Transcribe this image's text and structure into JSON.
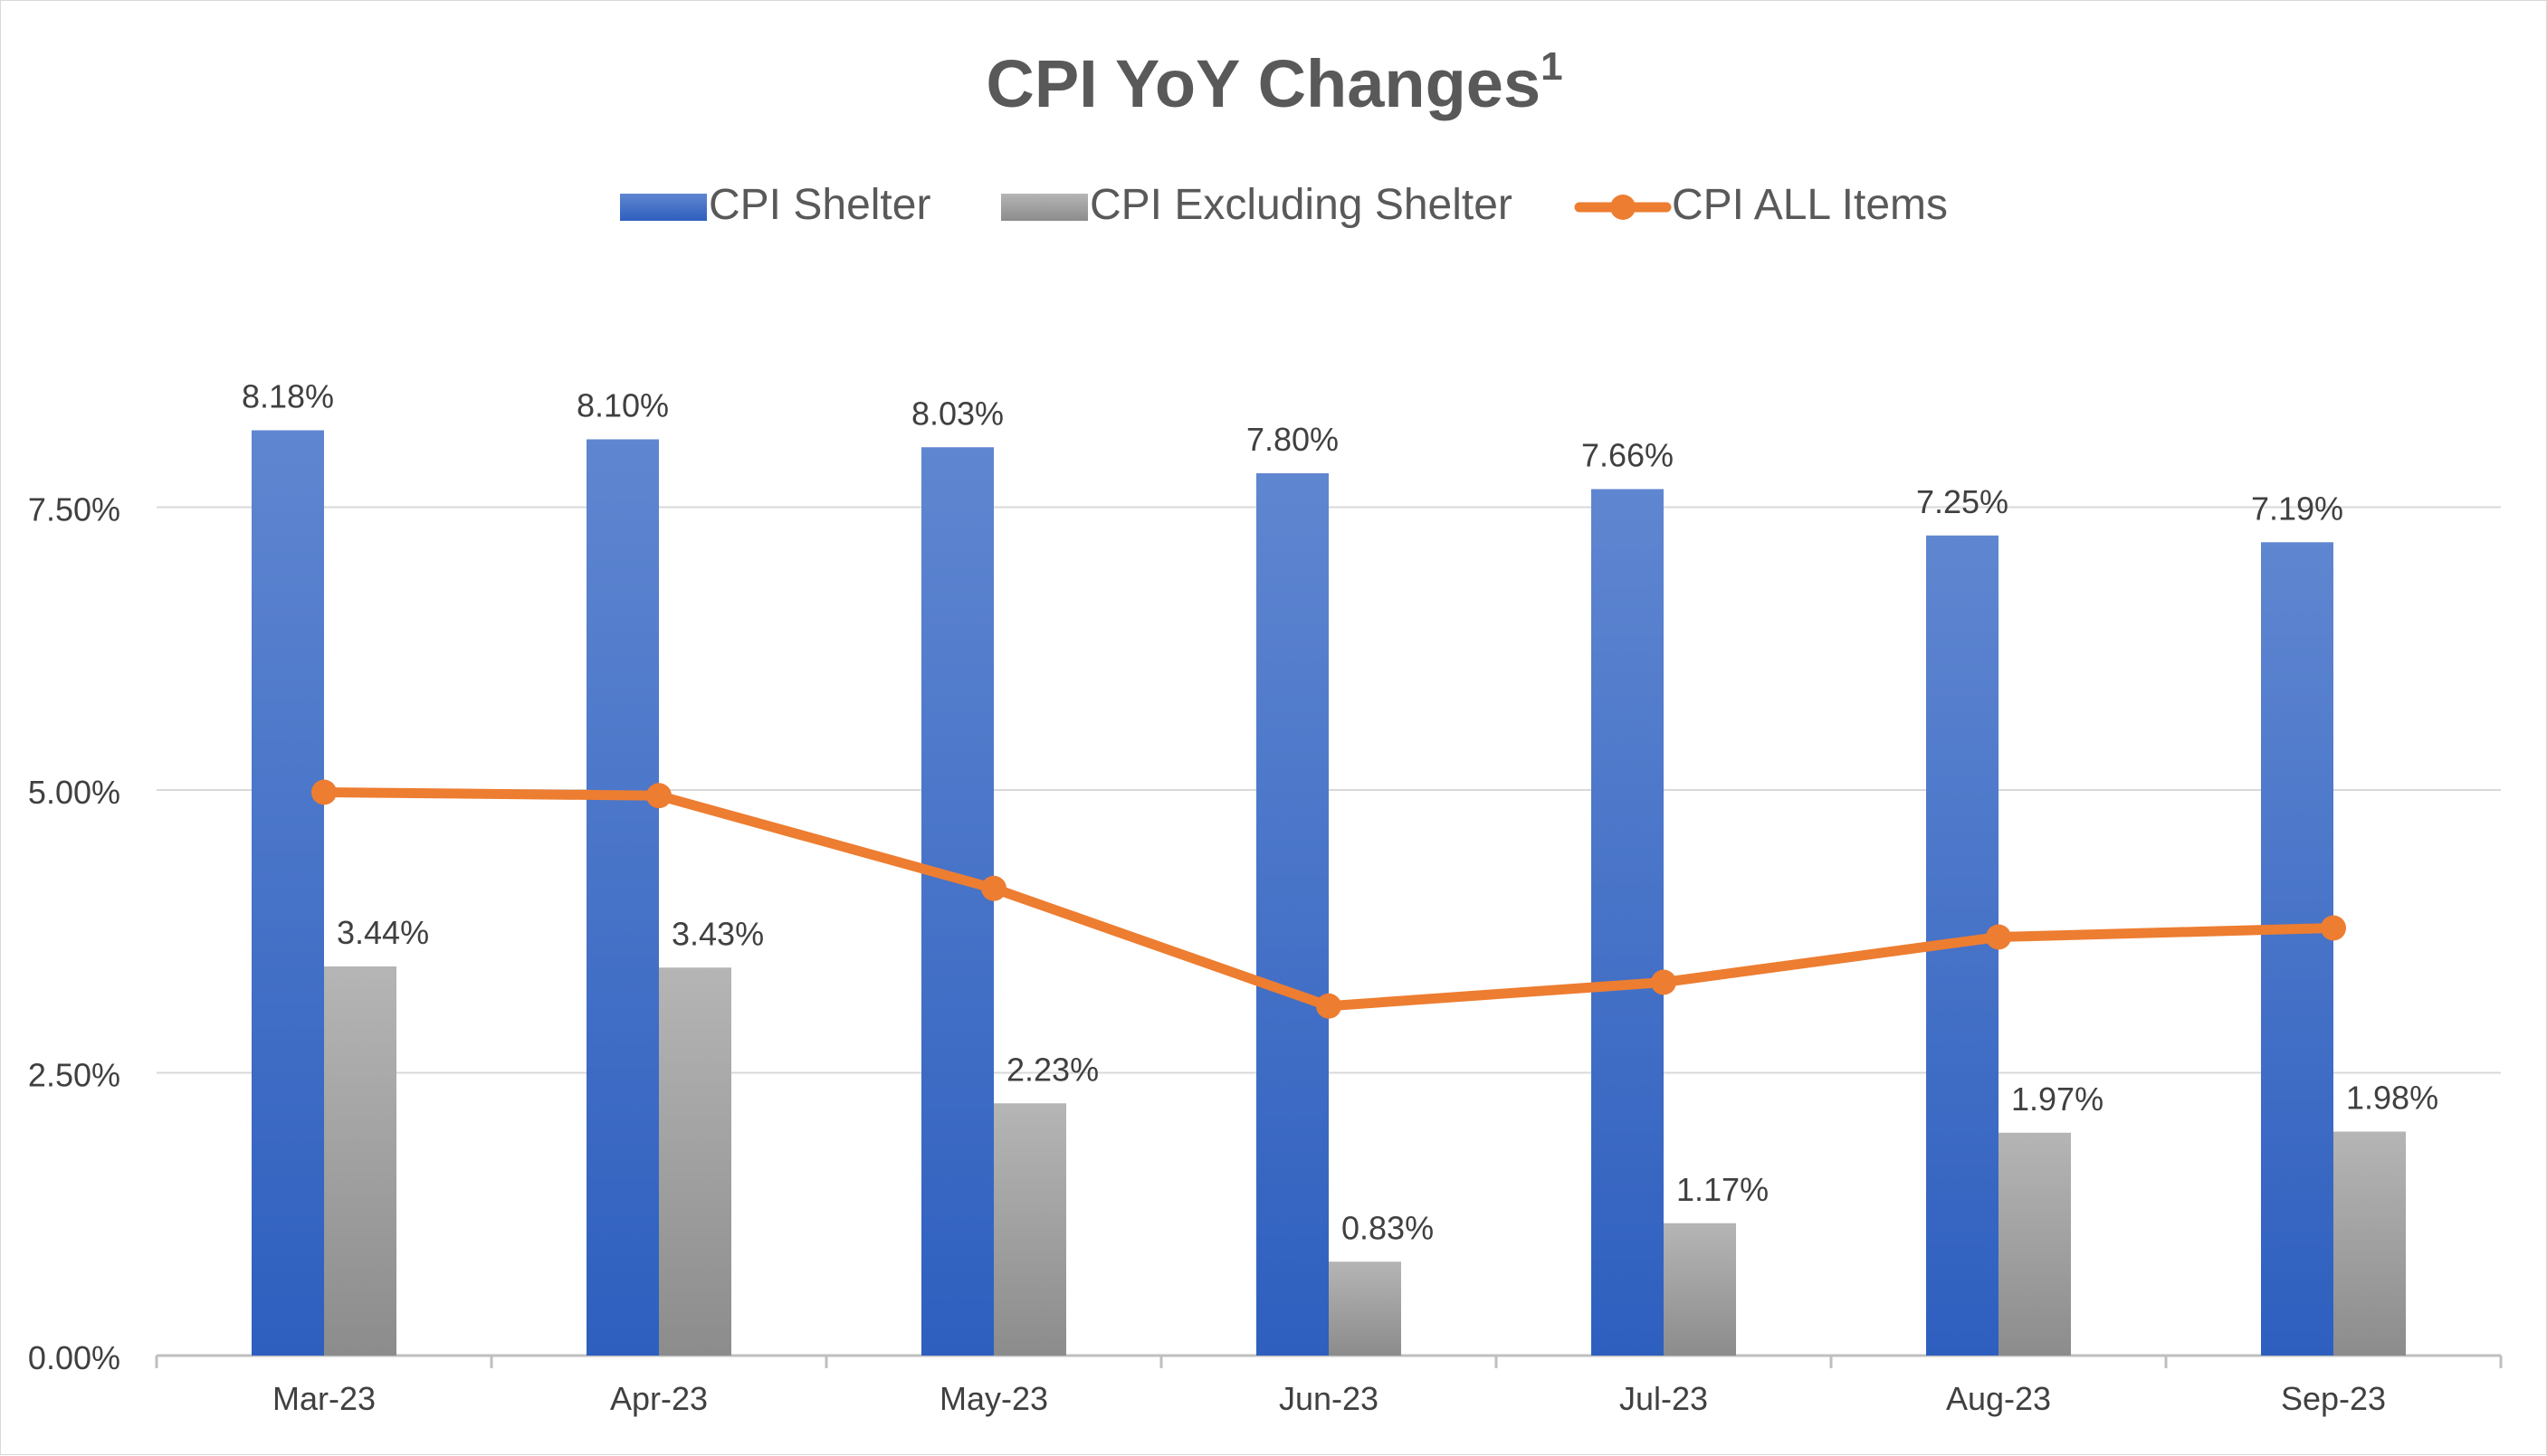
{
  "chart_data": {
    "type": "bar",
    "title": "CPI YoY Changes",
    "title_superscript": "1",
    "categories": [
      "Mar-23",
      "Apr-23",
      "May-23",
      "Jun-23",
      "Jul-23",
      "Aug-23",
      "Sep-23"
    ],
    "series": [
      {
        "name": "CPI Shelter",
        "kind": "bar",
        "values": [
          8.18,
          8.1,
          8.03,
          7.8,
          7.66,
          7.25,
          7.19
        ],
        "labels": [
          "8.18%",
          "8.10%",
          "8.03%",
          "7.80%",
          "7.66%",
          "7.25%",
          "7.19%"
        ],
        "color_top": "#5f86d0",
        "color_bottom": "#2e5fbf"
      },
      {
        "name": "CPI Excluding Shelter",
        "kind": "bar",
        "values": [
          3.44,
          3.43,
          2.23,
          0.83,
          1.17,
          1.97,
          1.98
        ],
        "labels": [
          "3.44%",
          "3.43%",
          "2.23%",
          "0.83%",
          "1.17%",
          "1.97%",
          "1.98%"
        ],
        "color_top": "#b5b5b5",
        "color_bottom": "#8c8c8c"
      },
      {
        "name": "CPI ALL Items",
        "kind": "line",
        "values": [
          4.98,
          4.95,
          4.13,
          3.09,
          3.3,
          3.7,
          3.78
        ],
        "color": "#ed7d31"
      }
    ],
    "yticks": [
      "0.00%",
      "2.50%",
      "5.00%",
      "7.50%"
    ],
    "ytick_values": [
      0,
      2.5,
      5,
      7.5
    ],
    "ylim": [
      0,
      9.4
    ],
    "xlabel": "",
    "ylabel": "",
    "grid": true,
    "legend_position": "top"
  }
}
